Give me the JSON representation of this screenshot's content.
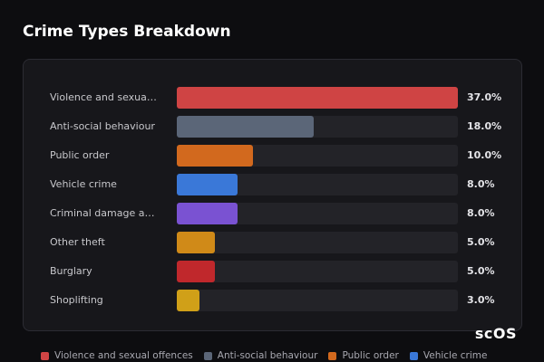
{
  "chart_data": {
    "type": "bar",
    "orientation": "horizontal",
    "title": "Crime Types Breakdown",
    "categories": [
      "Violence and sexual offences",
      "Anti-social behaviour",
      "Public order",
      "Vehicle crime",
      "Criminal damage and arson",
      "Other theft",
      "Burglary",
      "Shoplifting"
    ],
    "values": [
      37,
      18,
      10,
      8,
      8,
      5,
      5,
      3
    ],
    "value_labels": [
      "37.0%",
      "18.0%",
      "10.0%",
      "8.0%",
      "8.0%",
      "5.0%",
      "5.0%",
      "3.0%"
    ],
    "colors": [
      "#cf4444",
      "#5b6678",
      "#d2691e",
      "#3a78d8",
      "#7a52d2",
      "#d08a18",
      "#c0282c",
      "#d0a018"
    ],
    "legend": "bottom"
  },
  "logo": "scOS"
}
